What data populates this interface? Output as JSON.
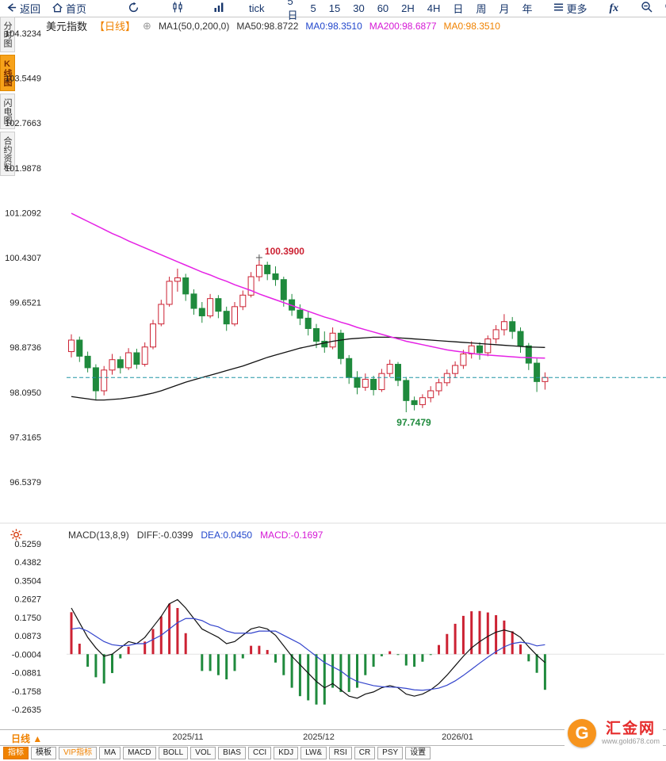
{
  "toolbar": {
    "back_label": "返回",
    "home_label": "首页",
    "tick_label": "tick",
    "periods": [
      "5日",
      "5",
      "15",
      "30",
      "60",
      "2H",
      "4H",
      "日",
      "周",
      "月",
      "年"
    ],
    "more_label": "更多",
    "fx_label": "fx"
  },
  "sidebar": {
    "items": [
      "分时图",
      "K线图",
      "闪电图",
      "合约资料"
    ]
  },
  "chart_header": {
    "symbol": "美元指数",
    "period_tag": "【日线】",
    "add_icon": "⊕",
    "ma_formula": "MA1(50,0,200,0)",
    "ma50": "MA50:98.8722",
    "ma0_blue": "MA0:98.3510",
    "ma200": "MA200:98.6877",
    "ma0_orange": "MA0:98.3510"
  },
  "macd_header": {
    "formula": "MACD(13,8,9)",
    "diff": "DIFF:-0.0399",
    "dea": "DEA:0.0450",
    "macd": "MACD:-0.1697"
  },
  "bottom": {
    "period_button": "日线 ▲",
    "dates": [
      "2025/11",
      "2025/12",
      "2026/01"
    ],
    "tabs": [
      "指标",
      "模板",
      "VIP指标",
      "MA",
      "MACD",
      "BOLL",
      "VOL",
      "BIAS",
      "CCI",
      "KDJ",
      "LW&",
      "RSI",
      "CR",
      "PSY",
      "设置"
    ],
    "logo_letter": "G",
    "logo_text": "汇金网",
    "logo_site": "www.gold678.com"
  },
  "chart_data": {
    "type": "candlestick+macd",
    "symbol": "美元指数",
    "period": "日线",
    "price_axis": [
      "104.3234",
      "103.5449",
      "102.7663",
      "101.9878",
      "101.2092",
      "100.4307",
      "99.6521",
      "98.8736",
      "98.0950",
      "97.3165",
      "96.5379"
    ],
    "macd_axis": [
      "0.5259",
      "0.4382",
      "0.3504",
      "0.2627",
      "0.1750",
      "0.0873",
      "-0.0004",
      "-0.0881",
      "-0.1758",
      "-0.2635"
    ],
    "last_price_line": 98.351,
    "high_annotation": {
      "index": 23,
      "value": "100.3900"
    },
    "low_annotation": {
      "index": 41,
      "value": "97.7479"
    },
    "colors": {
      "up": "#cc2233",
      "down": "#1f8a3d",
      "ma50": "#111111",
      "ma200": "#e522e5",
      "diff": "#111111",
      "dea": "#3344cc",
      "priceline": "#2196a6",
      "accent": "#f08200"
    },
    "candles": [
      [
        98.8,
        99.1,
        98.7,
        99.0
      ],
      [
        99.0,
        99.06,
        98.62,
        98.72
      ],
      [
        98.72,
        98.8,
        98.44,
        98.52
      ],
      [
        98.52,
        98.58,
        97.96,
        98.12
      ],
      [
        98.12,
        98.55,
        98.04,
        98.48
      ],
      [
        98.48,
        98.76,
        98.4,
        98.66
      ],
      [
        98.66,
        98.72,
        98.42,
        98.52
      ],
      [
        98.52,
        98.86,
        98.48,
        98.78
      ],
      [
        98.78,
        98.85,
        98.5,
        98.58
      ],
      [
        98.58,
        98.96,
        98.54,
        98.88
      ],
      [
        98.88,
        99.35,
        98.84,
        99.28
      ],
      [
        99.28,
        99.7,
        99.24,
        99.62
      ],
      [
        99.62,
        100.1,
        99.58,
        100.02
      ],
      [
        100.02,
        100.24,
        99.84,
        100.08
      ],
      [
        100.08,
        100.15,
        99.68,
        99.8
      ],
      [
        99.8,
        99.88,
        99.44,
        99.55
      ],
      [
        99.55,
        99.66,
        99.3,
        99.42
      ],
      [
        99.42,
        99.8,
        99.38,
        99.72
      ],
      [
        99.72,
        99.78,
        99.38,
        99.5
      ],
      [
        99.5,
        99.58,
        99.16,
        99.28
      ],
      [
        99.28,
        99.66,
        99.24,
        99.58
      ],
      [
        99.58,
        99.86,
        99.52,
        99.78
      ],
      [
        99.78,
        100.18,
        99.74,
        100.1
      ],
      [
        100.1,
        100.39,
        100.02,
        100.3
      ],
      [
        100.3,
        100.36,
        100.04,
        100.15
      ],
      [
        100.15,
        100.28,
        99.94,
        100.05
      ],
      [
        100.05,
        100.1,
        99.58,
        99.7
      ],
      [
        99.7,
        99.8,
        99.42,
        99.52
      ],
      [
        99.52,
        99.62,
        99.26,
        99.38
      ],
      [
        99.38,
        99.5,
        99.08,
        99.2
      ],
      [
        99.2,
        99.28,
        98.86,
        98.98
      ],
      [
        98.98,
        99.15,
        98.78,
        98.88
      ],
      [
        98.88,
        99.22,
        98.84,
        99.12
      ],
      [
        99.12,
        99.18,
        98.58,
        98.68
      ],
      [
        98.68,
        98.74,
        98.24,
        98.35
      ],
      [
        98.35,
        98.46,
        98.06,
        98.18
      ],
      [
        98.18,
        98.42,
        98.12,
        98.32
      ],
      [
        98.32,
        98.38,
        98.04,
        98.14
      ],
      [
        98.14,
        98.5,
        98.1,
        98.42
      ],
      [
        98.42,
        98.66,
        98.36,
        98.58
      ],
      [
        98.58,
        98.62,
        98.2,
        98.3
      ],
      [
        98.3,
        98.36,
        97.7479,
        97.95
      ],
      [
        97.95,
        98.02,
        97.78,
        97.88
      ],
      [
        97.88,
        98.06,
        97.82,
        98.0
      ],
      [
        98.0,
        98.2,
        97.92,
        98.12
      ],
      [
        98.12,
        98.33,
        98.04,
        98.26
      ],
      [
        98.26,
        98.49,
        98.2,
        98.42
      ],
      [
        98.42,
        98.63,
        98.34,
        98.56
      ],
      [
        98.56,
        98.83,
        98.5,
        98.76
      ],
      [
        98.76,
        98.98,
        98.68,
        98.9
      ],
      [
        98.9,
        98.96,
        98.66,
        98.78
      ],
      [
        98.78,
        99.08,
        98.72,
        99.02
      ],
      [
        99.02,
        99.26,
        98.94,
        99.18
      ],
      [
        99.18,
        99.45,
        99.08,
        99.32
      ],
      [
        99.32,
        99.4,
        99.02,
        99.15
      ],
      [
        99.15,
        99.22,
        98.78,
        98.9
      ],
      [
        98.9,
        98.95,
        98.48,
        98.6
      ],
      [
        98.6,
        98.68,
        98.1,
        98.28
      ],
      [
        98.28,
        98.44,
        98.14,
        98.351
      ]
    ],
    "ma50": [
      98.02,
      98.0,
      97.98,
      97.96,
      97.96,
      97.97,
      97.98,
      98.0,
      98.02,
      98.05,
      98.08,
      98.12,
      98.17,
      98.22,
      98.27,
      98.31,
      98.35,
      98.39,
      98.43,
      98.47,
      98.51,
      98.55,
      98.6,
      98.65,
      98.7,
      98.74,
      98.78,
      98.82,
      98.86,
      98.89,
      98.92,
      98.95,
      98.98,
      99.0,
      99.02,
      99.03,
      99.04,
      99.05,
      99.05,
      99.05,
      99.04,
      99.03,
      99.02,
      99.01,
      99.0,
      98.99,
      98.98,
      98.97,
      98.96,
      98.95,
      98.94,
      98.93,
      98.92,
      98.91,
      98.9,
      98.89,
      98.88,
      98.876,
      98.8722
    ],
    "ma200": [
      101.2,
      101.13,
      101.06,
      100.99,
      100.92,
      100.85,
      100.79,
      100.72,
      100.66,
      100.6,
      100.54,
      100.48,
      100.42,
      100.36,
      100.3,
      100.24,
      100.18,
      100.13,
      100.07,
      100.02,
      99.96,
      99.91,
      99.86,
      99.8,
      99.75,
      99.7,
      99.65,
      99.6,
      99.55,
      99.5,
      99.45,
      99.4,
      99.36,
      99.31,
      99.27,
      99.22,
      99.18,
      99.14,
      99.1,
      99.06,
      99.02,
      98.98,
      98.95,
      98.92,
      98.89,
      98.86,
      98.83,
      98.81,
      98.79,
      98.77,
      98.75,
      98.74,
      98.73,
      98.72,
      98.71,
      98.7,
      98.695,
      98.69,
      98.6877
    ],
    "macd": {
      "diff": [
        0.22,
        0.15,
        0.08,
        0.03,
        -0.01,
        0.0,
        0.03,
        0.06,
        0.05,
        0.08,
        0.13,
        0.18,
        0.24,
        0.26,
        0.22,
        0.17,
        0.12,
        0.1,
        0.08,
        0.05,
        0.06,
        0.09,
        0.12,
        0.13,
        0.12,
        0.09,
        0.04,
        -0.01,
        -0.05,
        -0.09,
        -0.13,
        -0.16,
        -0.14,
        -0.17,
        -0.2,
        -0.21,
        -0.19,
        -0.18,
        -0.16,
        -0.15,
        -0.16,
        -0.19,
        -0.2,
        -0.19,
        -0.17,
        -0.14,
        -0.1,
        -0.055,
        -0.01,
        0.03,
        0.06,
        0.085,
        0.105,
        0.115,
        0.105,
        0.08,
        0.035,
        -0.005,
        -0.0399
      ],
      "dea": [
        0.12,
        0.125,
        0.11,
        0.085,
        0.06,
        0.045,
        0.04,
        0.042,
        0.05,
        0.05,
        0.07,
        0.09,
        0.12,
        0.15,
        0.17,
        0.17,
        0.16,
        0.14,
        0.13,
        0.11,
        0.1,
        0.1,
        0.1,
        0.11,
        0.11,
        0.11,
        0.09,
        0.07,
        0.05,
        0.02,
        -0.01,
        -0.04,
        -0.06,
        -0.08,
        -0.11,
        -0.13,
        -0.14,
        -0.15,
        -0.155,
        -0.157,
        -0.158,
        -0.163,
        -0.17,
        -0.172,
        -0.168,
        -0.1618,
        -0.1481,
        -0.1274,
        -0.1013,
        -0.0722,
        -0.0428,
        -0.0144,
        0.0121,
        0.0349,
        0.0505,
        0.057,
        0.0521,
        0.0394,
        0.045
      ]
    }
  }
}
